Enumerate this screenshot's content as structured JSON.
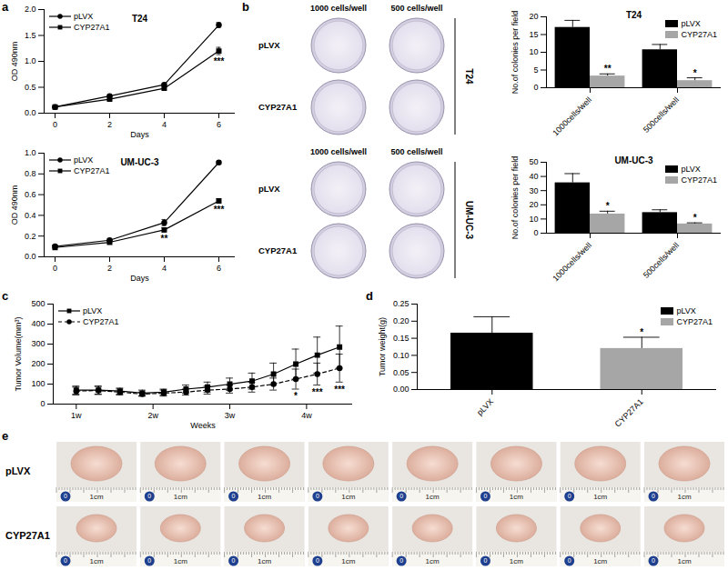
{
  "chart_data": [
    {
      "type": "line",
      "title": "T24",
      "x_label": "Days",
      "y_label": "OD 490nm",
      "x": [
        0,
        2,
        4,
        6
      ],
      "xlim": [
        -0.4,
        6.6
      ],
      "xticks": [
        0,
        2,
        4,
        6
      ],
      "ylim": [
        0,
        2
      ],
      "yticks": [
        {
          "value": 0,
          "label": "0.0"
        },
        0.5,
        {
          "value": 1,
          "label": "1.0"
        },
        1.5,
        {
          "value": 2,
          "label": "2.0"
        }
      ],
      "legend": "top-left",
      "series": [
        {
          "name": "pLVX",
          "color": "#000000",
          "marker": "circle",
          "line_style": "solid",
          "values": [
            0.12,
            0.33,
            0.55,
            1.7
          ],
          "errors": [
            0.01,
            0.02,
            0.02,
            0.05
          ]
        },
        {
          "name": "CYP27A1",
          "color": "#000000",
          "marker": "square",
          "line_style": "solid",
          "values": [
            0.12,
            0.27,
            0.48,
            1.2
          ],
          "errors": [
            0.01,
            0.02,
            0.02,
            0.07
          ]
        }
      ],
      "annotations": [
        {
          "x": 6,
          "series": "CYP27A1",
          "text": "***"
        }
      ]
    },
    {
      "type": "line",
      "title": "UM-UC-3",
      "x_label": "Days",
      "y_label": "OD 490nm",
      "x": [
        0,
        2,
        4,
        6
      ],
      "xlim": [
        -0.4,
        6.6
      ],
      "xticks": [
        0,
        2,
        4,
        6
      ],
      "ylim": [
        0,
        1
      ],
      "yticks": [
        {
          "value": 0,
          "label": "0.0"
        },
        0.2,
        0.4,
        0.6,
        0.8,
        {
          "value": 1,
          "label": "1.0"
        }
      ],
      "legend": "top-left",
      "series": [
        {
          "name": "pLVX",
          "color": "#000000",
          "marker": "circle",
          "line_style": "solid",
          "values": [
            0.1,
            0.16,
            0.33,
            0.91
          ],
          "errors": [
            0.01,
            0.01,
            0.03,
            0.01
          ]
        },
        {
          "name": "CYP27A1",
          "color": "#000000",
          "marker": "square",
          "line_style": "solid",
          "values": [
            0.09,
            0.14,
            0.26,
            0.54
          ],
          "errors": [
            0.01,
            0.01,
            0.02,
            0.02
          ]
        }
      ],
      "annotations": [
        {
          "x": 4,
          "series": "CYP27A1",
          "text": "**"
        },
        {
          "x": 6,
          "series": "CYP27A1",
          "text": "***"
        }
      ]
    },
    {
      "type": "bar",
      "title": "T24",
      "y_label": "No.of colonies per field",
      "categories": [
        "1000cells/well",
        "500cells/well"
      ],
      "ylim": [
        0,
        20
      ],
      "yticks": [
        0,
        5,
        10,
        15,
        20
      ],
      "legend": "top-right",
      "series": [
        {
          "name": "pLVX",
          "color": "#000000",
          "values": [
            17,
            10.7
          ],
          "errors": [
            2,
            1.5
          ]
        },
        {
          "name": "CYP27A1",
          "color": "#a6a6a6",
          "values": [
            3.3,
            2
          ],
          "errors": [
            0.6,
            0.8
          ]
        }
      ],
      "annotations": [
        {
          "category": "1000cells/well",
          "series": "CYP27A1",
          "text": "**"
        },
        {
          "category": "500cells/well",
          "series": "CYP27A1",
          "text": "*"
        }
      ]
    },
    {
      "type": "bar",
      "title": "UM-UC-3",
      "y_label": "No.of colonies per field",
      "categories": [
        "1000cells/well",
        "500cells/well"
      ],
      "ylim": [
        0,
        50
      ],
      "yticks": [
        0,
        10,
        20,
        30,
        40,
        50
      ],
      "legend": "top-right",
      "series": [
        {
          "name": "pLVX",
          "color": "#000000",
          "values": [
            35.5,
            14.5
          ],
          "errors": [
            6.5,
            2
          ]
        },
        {
          "name": "CYP27A1",
          "color": "#a6a6a6",
          "values": [
            13.5,
            6.5
          ],
          "errors": [
            2,
            0.8
          ]
        }
      ],
      "annotations": [
        {
          "category": "1000cells/well",
          "series": "CYP27A1",
          "text": "*"
        },
        {
          "category": "500cells/well",
          "series": "CYP27A1",
          "text": "*"
        }
      ]
    },
    {
      "type": "line",
      "x_label": "Weeks",
      "y_label": "Tumor Volume(mm³)",
      "x": [
        1,
        1.29,
        1.57,
        1.86,
        2.14,
        2.43,
        2.71,
        3,
        3.29,
        3.57,
        3.86,
        4.14,
        4.43
      ],
      "xlim": [
        0.7,
        4.6
      ],
      "xticks": [
        {
          "value": 1,
          "label": "1w"
        },
        {
          "value": 2,
          "label": "2w"
        },
        {
          "value": 3,
          "label": "3w"
        },
        {
          "value": 4,
          "label": "4w"
        }
      ],
      "ylim": [
        0,
        500
      ],
      "yticks": [
        0,
        100,
        200,
        300,
        400,
        500
      ],
      "legend": "top-left",
      "series": [
        {
          "name": "pLVX",
          "color": "#000000",
          "marker": "square",
          "line_style": "solid",
          "values": [
            70,
            70,
            65,
            55,
            60,
            75,
            85,
            100,
            115,
            150,
            200,
            245,
            285
          ],
          "errors": [
            20,
            20,
            15,
            15,
            15,
            20,
            25,
            30,
            40,
            55,
            75,
            90,
            105
          ]
        },
        {
          "name": "CYP27A1",
          "color": "#000000",
          "marker": "circle",
          "line_style": "dashed",
          "values": [
            65,
            68,
            60,
            50,
            55,
            60,
            70,
            75,
            85,
            100,
            125,
            150,
            180
          ],
          "errors": [
            20,
            20,
            15,
            10,
            15,
            15,
            20,
            20,
            25,
            30,
            50,
            55,
            70
          ]
        }
      ],
      "annotations": [
        {
          "x": 3.86,
          "series": "CYP27A1",
          "text": "*"
        },
        {
          "x": 4.14,
          "series": "CYP27A1",
          "text": "***"
        },
        {
          "x": 4.43,
          "series": "CYP27A1",
          "text": "***"
        }
      ]
    },
    {
      "type": "bar",
      "y_label": "Tumor weight(g)",
      "categories": [
        "pLVX",
        "CYP27A1"
      ],
      "values": [
        0.165,
        0.12
      ],
      "errors": [
        0.048,
        0.033
      ],
      "colors": [
        "#000000",
        "#a6a6a6"
      ],
      "ylim": [
        0,
        0.25
      ],
      "yticks": [
        {
          "value": 0,
          "label": "0.00"
        },
        {
          "value": 0.05,
          "label": "0.05"
        },
        {
          "value": 0.1,
          "label": "0.10"
        },
        {
          "value": 0.15,
          "label": "0.15"
        },
        {
          "value": 0.2,
          "label": "0.20"
        },
        {
          "value": 0.25,
          "label": "0.25"
        }
      ],
      "legend": "top-right",
      "annotations": [
        {
          "category": "CYP27A1",
          "text": "*"
        }
      ]
    }
  ],
  "panel_labels": [
    "a",
    "b",
    "c",
    "d",
    "e"
  ],
  "colony_images": {
    "column_labels": [
      "1000 cells/well",
      "500 cells/well"
    ],
    "row_labels": [
      "pLVX",
      "CYP27A1"
    ],
    "cell_lines": [
      "T24",
      "UM-UC-3"
    ]
  },
  "tumor_photos": {
    "row_labels": [
      "pLVX",
      "CYP27A1"
    ],
    "count_per_row": 8,
    "ruler_labels": [
      "0",
      "1cm"
    ]
  }
}
